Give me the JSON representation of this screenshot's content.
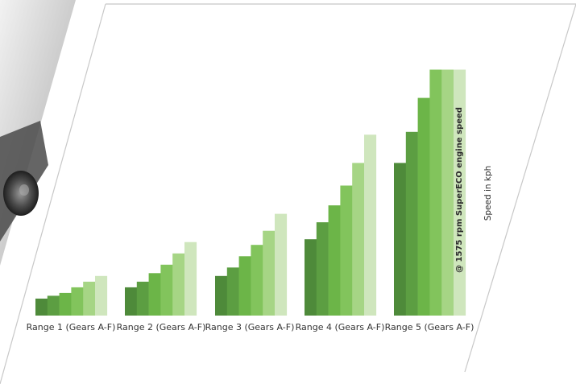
{
  "chart_data": {
    "type": "bar",
    "categories": [
      "Range 1 (Gears A-F)",
      "Range 2 (Gears A-F)",
      "Range 3 (Gears A-F)",
      "Range 4 (Gears A-F)",
      "Range 5 (Gears A-F)"
    ],
    "series": [
      {
        "values": [
          6,
          10,
          14,
          27,
          54
        ]
      },
      {
        "values": [
          7,
          12,
          17,
          33,
          65
        ]
      },
      {
        "values": [
          8,
          15,
          21,
          39,
          77
        ]
      },
      {
        "values": [
          10,
          18,
          25,
          46,
          87
        ]
      },
      {
        "values": [
          12,
          22,
          30,
          54,
          87
        ]
      },
      {
        "values": [
          14,
          26,
          36,
          64,
          87
        ]
      }
    ],
    "ylabel": "Speed in kph",
    "annotation": "@ 1575 rpm SuperECO engine speed",
    "ylim": [
      0,
      90
    ],
    "grid": false,
    "legend": "none"
  },
  "colors": {
    "bars": [
      "#4e8a3a",
      "#5c9e42",
      "#6cb548",
      "#82c45c",
      "#a6d585",
      "#cfe6bd"
    ],
    "frame": "#c8c8c8",
    "photo_dark": "#3a3a3a",
    "photo_light": "#e6e6e6"
  }
}
